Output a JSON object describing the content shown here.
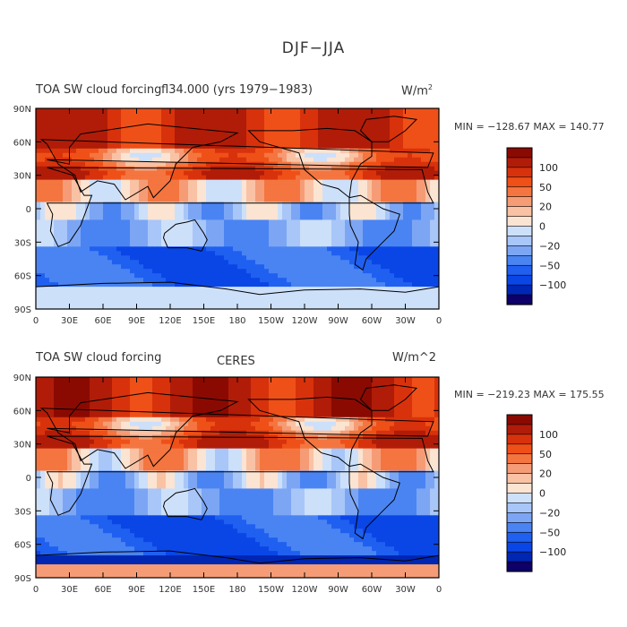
{
  "figure_title": "DJF−JJA",
  "colors": {
    "levels": [
      "#0d0068",
      "#0026b4",
      "#0a46e6",
      "#2060f0",
      "#4a84f2",
      "#7ca6f4",
      "#a8c6f8",
      "#cde0fa",
      "#fbe4d2",
      "#f9c2a4",
      "#f59c76",
      "#f4753f",
      "#ef5018",
      "#d8320c",
      "#b01c08",
      "#8a0a02"
    ],
    "land": "#000000",
    "frame": "#000000"
  },
  "chart_data": [
    {
      "type": "heatmap",
      "title_left": "TOA SW cloud forcing",
      "title_center": "fl34.000 (yrs 1979−1983)",
      "units_prefix": "W/m",
      "units_sup": "2",
      "stats": "MIN = −128.67  MAX = 140.77",
      "xlabels": [
        "0",
        "30E",
        "60E",
        "90E",
        "120E",
        "150E",
        "180",
        "150W",
        "120W",
        "90W",
        "60W",
        "30W",
        "0"
      ],
      "ylabels": [
        "90N",
        "60N",
        "30N",
        "0",
        "30S",
        "60S",
        "90S"
      ],
      "colorbar_labels": [
        "100",
        "50",
        "20",
        "0",
        "−20",
        "−50",
        "−100"
      ],
      "xlim": [
        0,
        360
      ],
      "ylim": [
        -90,
        90
      ],
      "min": -128.67,
      "max": 140.77
    },
    {
      "type": "heatmap",
      "title_left": "TOA SW cloud forcing",
      "title_center": "CERES",
      "units_prefix": "W/m^2",
      "units_sup": "",
      "stats": "MIN = −219.23  MAX = 175.55",
      "xlabels": [
        "0",
        "30E",
        "60E",
        "90E",
        "120E",
        "150E",
        "180",
        "150W",
        "120W",
        "90W",
        "60W",
        "30W",
        "0"
      ],
      "ylabels": [
        "90N",
        "60N",
        "30N",
        "0",
        "30S",
        "60S",
        "90S"
      ],
      "colorbar_labels": [
        "100",
        "50",
        "20",
        "0",
        "−20",
        "−50",
        "−100"
      ],
      "xlim": [
        0,
        360
      ],
      "ylim": [
        -90,
        90
      ],
      "min": -219.23,
      "max": 175.55
    }
  ]
}
